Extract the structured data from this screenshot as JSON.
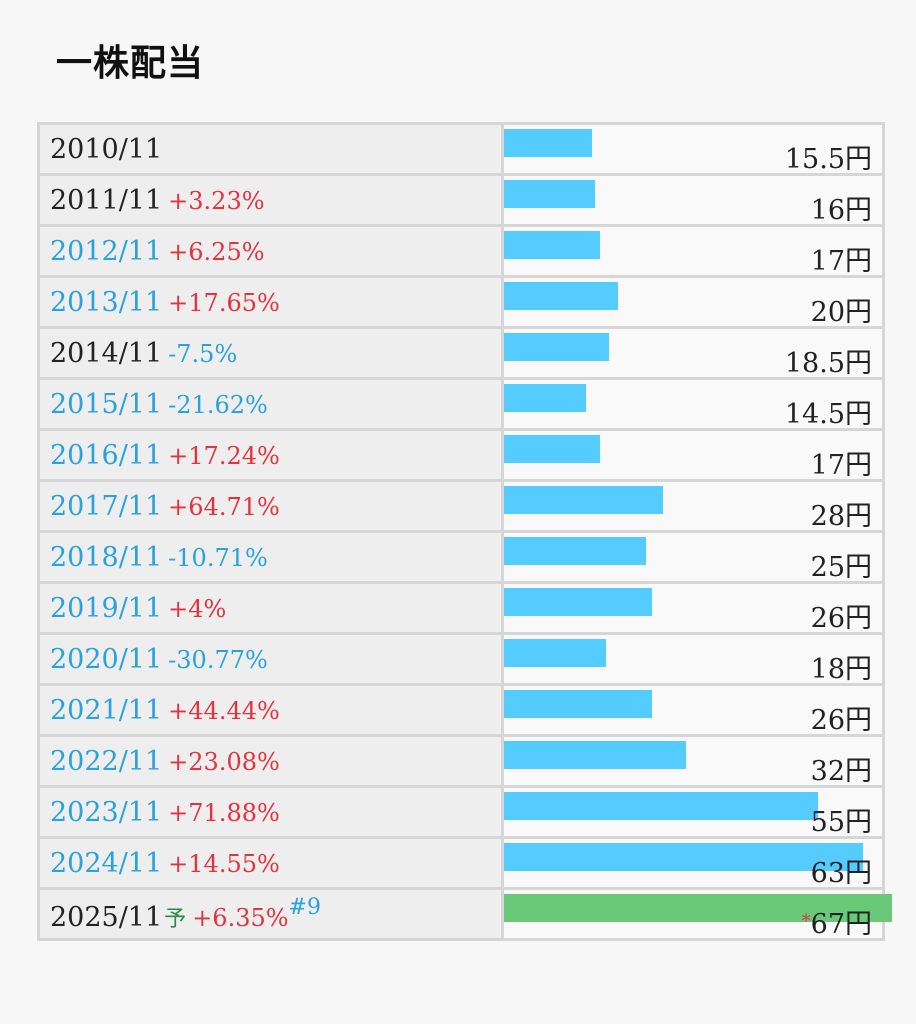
{
  "title": "一株配当",
  "currency_suffix": "円",
  "forecast_label": "予",
  "note_label": "#9",
  "forecast_asterisk": "*",
  "colors": {
    "bar_actual": "#55ccff",
    "bar_forecast": "#69c978",
    "increase": "#e4333f",
    "decrease": "#2aa2dd",
    "link": "#2aa2dd",
    "forecast_mark": "#2f8a45"
  },
  "max_value": 67,
  "rows": [
    {
      "date": "2010/11",
      "linked": false,
      "change": "",
      "direction": "",
      "value": 15.5,
      "amount": "15.5円"
    },
    {
      "date": "2011/11",
      "linked": false,
      "change": "+3.23%",
      "direction": "up",
      "value": 16,
      "amount": "16円"
    },
    {
      "date": "2012/11",
      "linked": true,
      "change": "+6.25%",
      "direction": "up",
      "value": 17,
      "amount": "17円"
    },
    {
      "date": "2013/11",
      "linked": true,
      "change": "+17.65%",
      "direction": "up",
      "value": 20,
      "amount": "20円"
    },
    {
      "date": "2014/11",
      "linked": false,
      "change": "-7.5%",
      "direction": "down",
      "value": 18.5,
      "amount": "18.5円"
    },
    {
      "date": "2015/11",
      "linked": true,
      "change": "-21.62%",
      "direction": "down",
      "value": 14.5,
      "amount": "14.5円"
    },
    {
      "date": "2016/11",
      "linked": true,
      "change": "+17.24%",
      "direction": "up",
      "value": 17,
      "amount": "17円"
    },
    {
      "date": "2017/11",
      "linked": true,
      "change": "+64.71%",
      "direction": "up",
      "value": 28,
      "amount": "28円"
    },
    {
      "date": "2018/11",
      "linked": true,
      "change": "-10.71%",
      "direction": "down",
      "value": 25,
      "amount": "25円"
    },
    {
      "date": "2019/11",
      "linked": true,
      "change": "+4%",
      "direction": "up",
      "value": 26,
      "amount": "26円"
    },
    {
      "date": "2020/11",
      "linked": true,
      "change": "-30.77%",
      "direction": "down",
      "value": 18,
      "amount": "18円"
    },
    {
      "date": "2021/11",
      "linked": true,
      "change": "+44.44%",
      "direction": "up",
      "value": 26,
      "amount": "26円"
    },
    {
      "date": "2022/11",
      "linked": true,
      "change": "+23.08%",
      "direction": "up",
      "value": 32,
      "amount": "32円"
    },
    {
      "date": "2023/11",
      "linked": true,
      "change": "+71.88%",
      "direction": "up",
      "value": 55,
      "amount": "55円"
    },
    {
      "date": "2024/11",
      "linked": true,
      "change": "+14.55%",
      "direction": "up",
      "value": 63,
      "amount": "63円"
    },
    {
      "date": "2025/11",
      "linked": false,
      "forecast": true,
      "change": "+6.35%",
      "direction": "up",
      "value": 67,
      "amount": "67円"
    }
  ]
}
